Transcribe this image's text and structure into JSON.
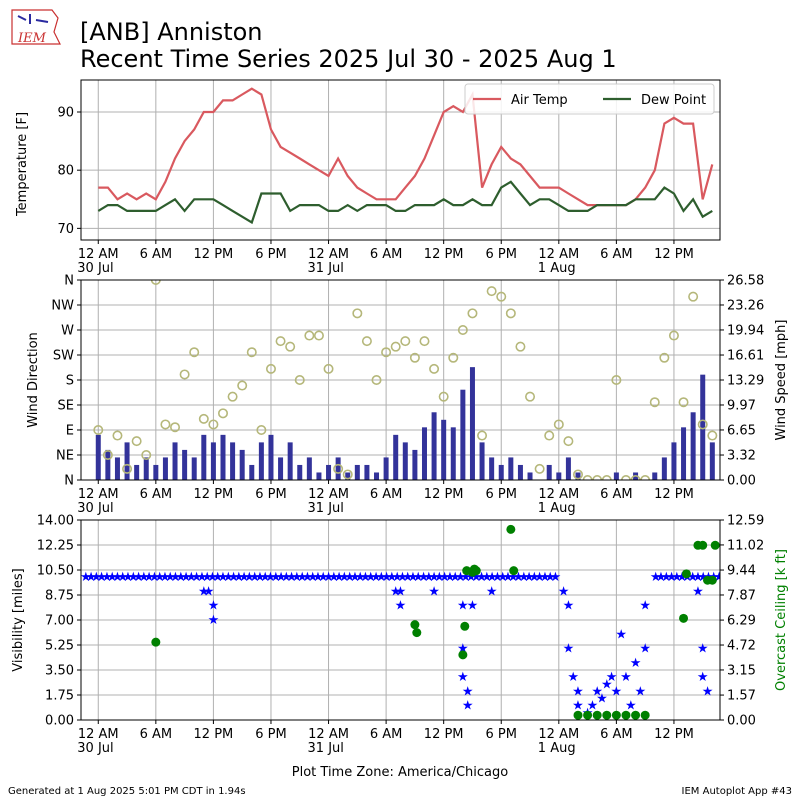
{
  "header": {
    "logo_text": "IEM",
    "title_line1": "[ANB] Anniston",
    "title_line2": "Recent Time Series 2025 Jul 30 - 2025 Aug 1"
  },
  "footer": {
    "generated": "Generated at 1 Aug 2025 5:01 PM CDT in 1.94s",
    "app": "IEM Autoplot App #43"
  },
  "colors": {
    "air_temp": "#d9595f",
    "dew_point": "#2e5e2e",
    "wind_bar": "#33339a",
    "wind_dir": "#b5b77a",
    "visibility": "#0000ff",
    "ceiling": "#008000",
    "grid": "#b0b0b0"
  },
  "time_axis": {
    "ticks": [
      "12 AM",
      "6 AM",
      "12 PM",
      "6 PM",
      "12 AM",
      "6 AM",
      "12 PM",
      "6 PM",
      "12 AM",
      "6 AM",
      "12 PM"
    ],
    "tick_hours": [
      0,
      6,
      12,
      18,
      24,
      30,
      36,
      42,
      48,
      54,
      60
    ],
    "dates": [
      "30 Jul",
      "31 Jul",
      "1 Aug"
    ],
    "date_hours": [
      0,
      24,
      48
    ],
    "range_hours": [
      -1.8,
      64.8
    ],
    "xlabel": "Plot Time Zone: America/Chicago"
  },
  "chart_data": [
    {
      "type": "line",
      "ylabel": "Temperature [F]",
      "ylim": [
        68,
        95.5
      ],
      "yticks": [
        "70",
        "80",
        "90"
      ],
      "ytick_values": [
        70,
        80,
        90
      ],
      "grid": true,
      "legend": "top-right",
      "series": [
        {
          "name": "Air Temp",
          "x": [
            0,
            1,
            2,
            3,
            4,
            5,
            6,
            7,
            8,
            9,
            10,
            11,
            12,
            13,
            14,
            15,
            16,
            17,
            18,
            19,
            20,
            21,
            22,
            23,
            24,
            25,
            26,
            27,
            28,
            29,
            30,
            31,
            32,
            33,
            34,
            35,
            36,
            37,
            38,
            39,
            40,
            41,
            42,
            43,
            44,
            45,
            46,
            47,
            48,
            49,
            50,
            51,
            52,
            53,
            54,
            55,
            56,
            57,
            58,
            59,
            60,
            61,
            62,
            63,
            64
          ],
          "values": [
            77,
            77,
            75,
            76,
            75,
            76,
            75,
            78,
            82,
            85,
            87,
            90,
            90,
            92,
            92,
            93,
            94,
            93,
            87,
            84,
            83,
            82,
            81,
            80,
            79,
            82,
            79,
            77,
            76,
            75,
            75,
            75,
            77,
            79,
            82,
            86,
            90,
            91,
            90,
            93,
            77,
            81,
            84,
            82,
            81,
            79,
            77,
            77,
            77,
            76,
            75,
            74,
            74,
            74,
            74,
            74,
            75,
            77,
            80,
            88,
            89,
            88,
            88,
            75,
            81
          ]
        },
        {
          "name": "Dew Point",
          "x": [
            0,
            1,
            2,
            3,
            4,
            5,
            6,
            7,
            8,
            9,
            10,
            11,
            12,
            13,
            14,
            15,
            16,
            17,
            18,
            19,
            20,
            21,
            22,
            23,
            24,
            25,
            26,
            27,
            28,
            29,
            30,
            31,
            32,
            33,
            34,
            35,
            36,
            37,
            38,
            39,
            40,
            41,
            42,
            43,
            44,
            45,
            46,
            47,
            48,
            49,
            50,
            51,
            52,
            53,
            54,
            55,
            56,
            57,
            58,
            59,
            60,
            61,
            62,
            63,
            64
          ],
          "values": [
            73,
            74,
            74,
            73,
            73,
            73,
            73,
            74,
            75,
            73,
            75,
            75,
            75,
            74,
            73,
            72,
            71,
            76,
            76,
            76,
            73,
            74,
            74,
            74,
            73,
            73,
            74,
            73,
            74,
            74,
            74,
            73,
            73,
            74,
            74,
            74,
            75,
            74,
            74,
            75,
            74,
            74,
            77,
            78,
            76,
            74,
            75,
            75,
            74,
            73,
            73,
            73,
            74,
            74,
            74,
            74,
            75,
            75,
            75,
            77,
            76,
            73,
            75,
            72,
            73
          ]
        }
      ]
    },
    {
      "type": "bar",
      "ylabel": "Wind Direction",
      "y2label": "Wind Speed [mph]",
      "yticks": [
        "N",
        "NE",
        "E",
        "SE",
        "S",
        "SW",
        "W",
        "NW",
        "N"
      ],
      "ytick_values": [
        0,
        45,
        90,
        135,
        180,
        225,
        270,
        315,
        360
      ],
      "ylim": [
        0,
        360
      ],
      "y2ticks": [
        "0.00",
        "3.32",
        "6.65",
        "9.97",
        "13.29",
        "16.61",
        "19.94",
        "23.26",
        "26.58"
      ],
      "y2tick_values": [
        0,
        3.32,
        6.65,
        9.97,
        13.29,
        16.61,
        19.94,
        23.26,
        26.58
      ],
      "y2lim": [
        0,
        26.58
      ],
      "grid": true,
      "series": [
        {
          "name": "Wind Speed",
          "x": [
            0,
            1,
            2,
            3,
            4,
            5,
            6,
            7,
            8,
            9,
            10,
            11,
            12,
            13,
            14,
            15,
            16,
            17,
            18,
            19,
            20,
            21,
            22,
            23,
            24,
            25,
            26,
            27,
            28,
            29,
            30,
            31,
            32,
            33,
            34,
            35,
            36,
            37,
            38,
            39,
            40,
            41,
            42,
            43,
            44,
            45,
            46,
            47,
            48,
            49,
            50,
            51,
            52,
            53,
            54,
            55,
            56,
            57,
            58,
            59,
            60,
            61,
            62,
            63,
            64
          ],
          "values": [
            6,
            4,
            3,
            5,
            2,
            3,
            2,
            3,
            5,
            4,
            3,
            6,
            5,
            6,
            5,
            4,
            2,
            5,
            6,
            3,
            5,
            2,
            3,
            1,
            2,
            3,
            1,
            2,
            2,
            1,
            3,
            6,
            5,
            4,
            7,
            9,
            8,
            7,
            12,
            15,
            5,
            3,
            2,
            3,
            2,
            1,
            0,
            2,
            1,
            3,
            1,
            0,
            0,
            0,
            1,
            0,
            1,
            0,
            1,
            3,
            5,
            7,
            9,
            14,
            5
          ]
        },
        {
          "name": "Wind Direction",
          "x": [
            0,
            1,
            2,
            3,
            4,
            5,
            6,
            7,
            8,
            9,
            10,
            11,
            12,
            13,
            14,
            15,
            16,
            17,
            18,
            19,
            20,
            21,
            22,
            23,
            24,
            25,
            26,
            27,
            28,
            29,
            30,
            31,
            32,
            33,
            34,
            35,
            36,
            37,
            38,
            39,
            40,
            41,
            42,
            43,
            44,
            45,
            46,
            47,
            48,
            49,
            50,
            51,
            52,
            53,
            54,
            55,
            56,
            57,
            58,
            59,
            60,
            61,
            62,
            63,
            64
          ],
          "values": [
            90,
            45,
            80,
            20,
            70,
            45,
            360,
            100,
            95,
            190,
            230,
            110,
            100,
            120,
            150,
            170,
            230,
            90,
            200,
            250,
            240,
            180,
            260,
            260,
            200,
            20,
            10,
            300,
            250,
            180,
            230,
            240,
            250,
            220,
            250,
            200,
            150,
            220,
            270,
            300,
            80,
            340,
            330,
            300,
            240,
            150,
            20,
            80,
            100,
            70,
            10,
            0,
            0,
            0,
            180,
            0,
            0,
            0,
            140,
            220,
            260,
            140,
            330,
            100,
            80
          ]
        }
      ]
    },
    {
      "type": "scatter",
      "ylabel": "Visibility [miles]",
      "y2label": "Overcast Ceiling [k ft]",
      "yticks": [
        "0.00",
        "1.75",
        "3.50",
        "5.25",
        "7.00",
        "8.75",
        "10.50",
        "12.25",
        "14.00"
      ],
      "ytick_values": [
        0,
        1.75,
        3.5,
        5.25,
        7.0,
        8.75,
        10.5,
        12.25,
        14.0
      ],
      "ylim": [
        0,
        14
      ],
      "y2ticks": [
        "0.00",
        "1.57",
        "3.15",
        "4.72",
        "6.29",
        "7.87",
        "9.44",
        "11.02",
        "12.59"
      ],
      "y2tick_values": [
        0,
        1.57,
        3.15,
        4.72,
        6.29,
        7.87,
        9.44,
        11.02,
        12.59
      ],
      "y2lim": [
        0,
        12.59
      ],
      "grid": true,
      "series": [
        {
          "name": "Visibility",
          "x": [
            11,
            11.5,
            12,
            12,
            31,
            31.5,
            31.5,
            35,
            38,
            38,
            38,
            38.5,
            38.5,
            39,
            41,
            48.5,
            49,
            49,
            49.5,
            50,
            50,
            51,
            51.5,
            52,
            52.5,
            53,
            53.5,
            54,
            54.5,
            55,
            55.5,
            56,
            56.5,
            57,
            57,
            62.5,
            63,
            63,
            63.5
          ],
          "values": [
            9,
            9,
            8,
            7,
            9,
            8,
            9,
            9,
            8,
            5,
            3,
            1,
            2,
            8,
            9,
            9,
            8,
            5,
            3,
            1,
            2,
            0.5,
            1,
            2,
            1.5,
            2.5,
            3,
            2,
            6,
            3,
            1,
            4,
            2,
            8,
            5,
            9,
            5,
            3,
            2
          ]
        },
        {
          "name": "Overcast Ceiling",
          "x": [
            6,
            33,
            33.2,
            38,
            38.2,
            38.4,
            39,
            39.2,
            39.4,
            43,
            43.3,
            50,
            51,
            52,
            53,
            54,
            55,
            56,
            57,
            61,
            61.3,
            62.5,
            63,
            63.5,
            64,
            64.3
          ],
          "values": [
            4.9,
            6.0,
            5.5,
            4.1,
            5.9,
            9.4,
            9.3,
            9.5,
            9.4,
            12.0,
            9.4,
            0.3,
            0.3,
            0.3,
            0.3,
            0.3,
            0.3,
            0.3,
            0.3,
            6.4,
            9.2,
            11.0,
            11.0,
            8.8,
            8.8,
            11.0
          ]
        }
      ]
    }
  ]
}
